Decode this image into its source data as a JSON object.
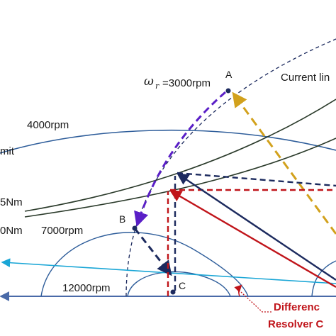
{
  "labels": {
    "current_limit": "Current lin",
    "speed_4000": "4000rpm",
    "speed_7000": "7000rpm",
    "speed_12000": "12000rpm",
    "limit_partial": "mit",
    "torque_1": "5Nm",
    "torque_2": "0Nm",
    "omega_symbol": "ω",
    "omega_sub": "r",
    "omega_value": "=3000rpm",
    "point_a": "A",
    "point_b": "B",
    "point_c": "C",
    "difference_line1": "Differenc",
    "difference_line2": "Resolver C"
  },
  "colors": {
    "curve_blue": "#2e5d9a",
    "dark_navy": "#1c2a5e",
    "red": "#c0141a",
    "purple": "#5a1fc7",
    "gold": "#d2a11c",
    "cyan": "#1aa6d6",
    "axis": "#4a6aa8",
    "torque_line": "#2a3a2a"
  }
}
